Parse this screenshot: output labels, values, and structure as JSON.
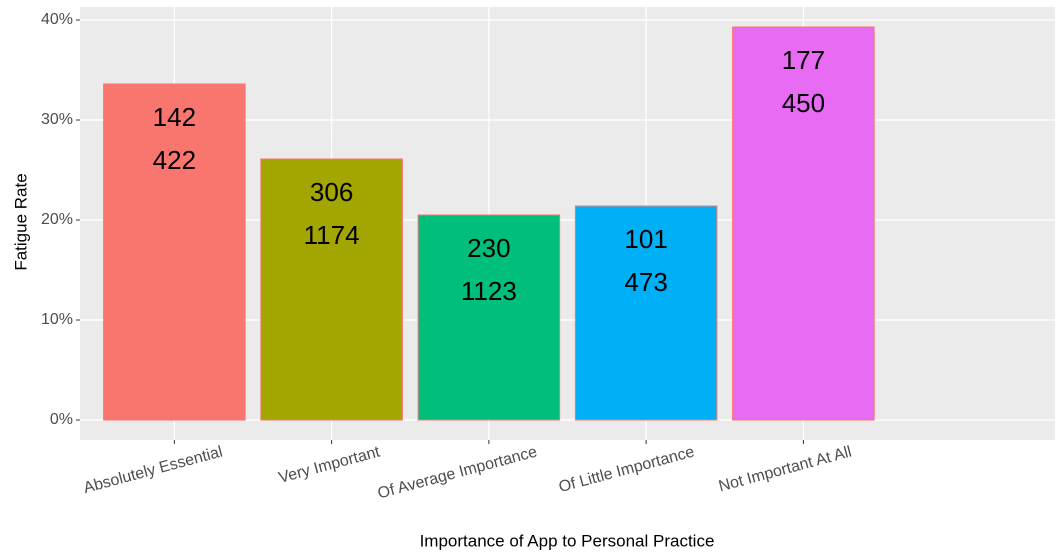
{
  "chart_data": {
    "type": "bar",
    "x_label": "Importance of App to Personal Practice",
    "y_label": "Fatigue Rate",
    "categories": [
      "Absolutely Essential",
      "Very Important",
      "Of Average Importance",
      "Of Little Importance",
      "Not Important At All"
    ],
    "values": [
      33.6,
      26.1,
      20.5,
      21.4,
      39.3
    ],
    "fatigued": [
      142,
      306,
      230,
      101,
      177
    ],
    "totals": [
      422,
      1174,
      1123,
      473,
      450
    ],
    "colors": [
      "#F8766D",
      "#A3A500",
      "#00BF7D",
      "#00B0F6",
      "#E76BF3"
    ],
    "ylim": [
      -2,
      41.3
    ],
    "yticks": [
      {
        "value": 0,
        "label": "0%"
      },
      {
        "value": 10,
        "label": "10%"
      },
      {
        "value": 20,
        "label": "20%"
      },
      {
        "value": 30,
        "label": "30%"
      },
      {
        "value": 40,
        "label": "40%"
      }
    ],
    "grid": true
  }
}
